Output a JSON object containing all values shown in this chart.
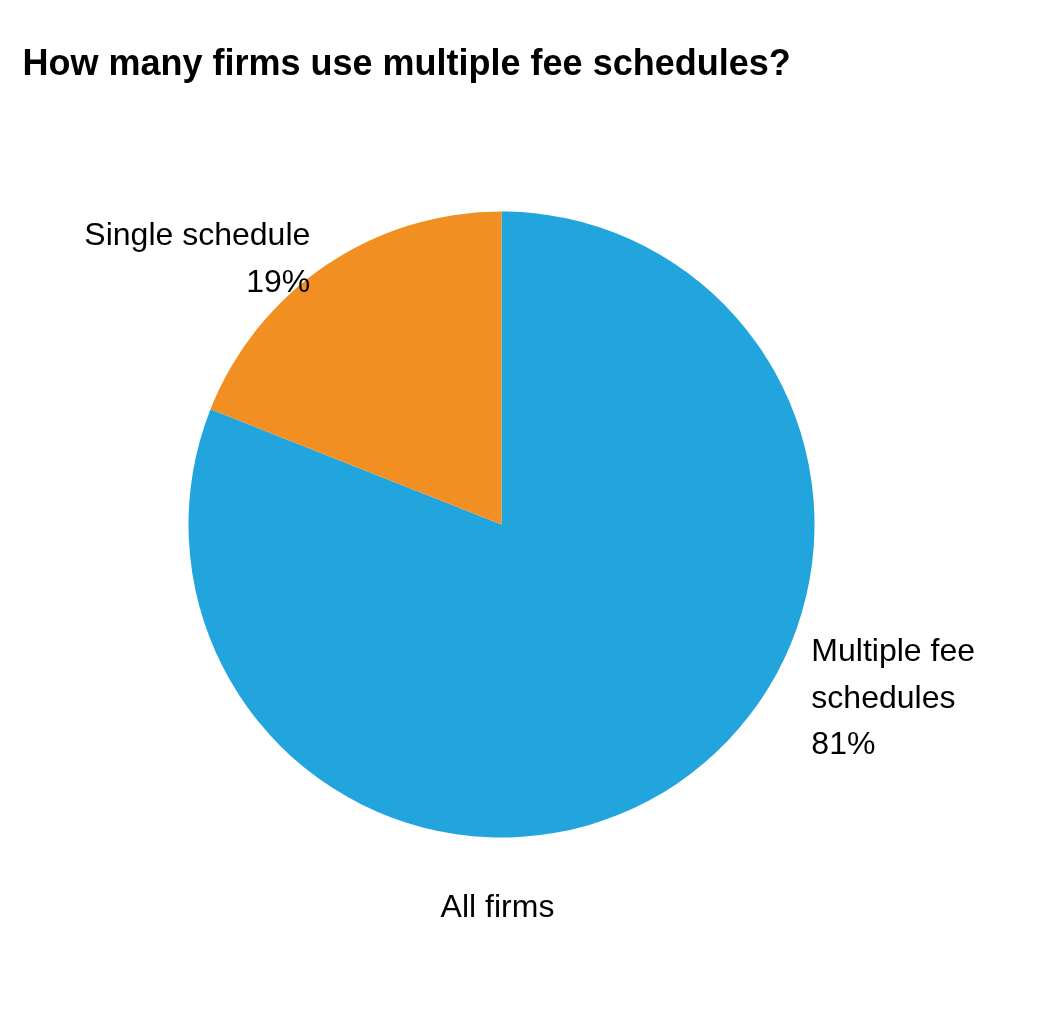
{
  "chart_data": {
    "type": "pie",
    "title": "How many firms use multiple fee schedules?",
    "xlabel": "All firms",
    "categories": [
      "Multiple fee schedules",
      "Single schedule"
    ],
    "values": [
      81,
      19
    ],
    "colors": [
      "#22a5dd",
      "#f18f22"
    ],
    "value_labels": [
      "81%",
      "19%"
    ]
  }
}
